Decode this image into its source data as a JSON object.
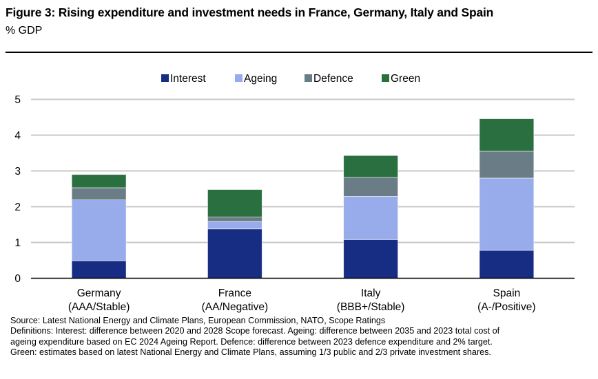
{
  "header": {
    "title": "Figure 3: Rising expenditure and investment needs in France, Germany, Italy and Spain",
    "subtitle": "% GDP"
  },
  "chart_data": {
    "type": "bar",
    "stacked": true,
    "title": "Figure 3: Rising expenditure and investment needs in France, Germany, Italy and Spain",
    "ylabel": "% GDP",
    "xlabel": "",
    "ylim": [
      0,
      5
    ],
    "yticks": [
      0,
      1,
      2,
      3,
      4,
      5
    ],
    "grid": true,
    "legend_position": "top-center",
    "categories": [
      {
        "name": "Germany",
        "rating": "(AAA/Stable)"
      },
      {
        "name": "France",
        "rating": "(AA/Negative)"
      },
      {
        "name": "Italy",
        "rating": "(BBB+/Stable)"
      },
      {
        "name": "Spain",
        "rating": "(A-/Positive)"
      }
    ],
    "series": [
      {
        "name": "Interest",
        "color": "#172d83",
        "values": [
          0.49,
          1.38,
          1.08,
          0.78
        ]
      },
      {
        "name": "Ageing",
        "color": "#98abeb",
        "values": [
          1.7,
          0.21,
          1.21,
          2.02
        ]
      },
      {
        "name": "Defence",
        "color": "#6a7c85",
        "values": [
          0.34,
          0.12,
          0.53,
          0.75
        ]
      },
      {
        "name": "Green",
        "color": "#2a6f3f",
        "values": [
          0.37,
          0.77,
          0.61,
          0.91
        ]
      }
    ]
  },
  "footnotes": {
    "source": "Source: Latest National Energy and Climate Plans, European Commission, NATO, Scope Ratings",
    "definitions_1": "Definitions: Interest: difference between 2020 and 2028 Scope forecast. Ageing: difference between 2035 and 2023 total cost of",
    "definitions_2": "ageing expenditure based on EC 2024 Ageing Report. Defence: difference between 2023 defence expenditure and 2% target.",
    "definitions_3": "Green: estimates based on latest National Energy and Climate Plans, assuming 1/3 public and 2/3 private investment shares."
  }
}
